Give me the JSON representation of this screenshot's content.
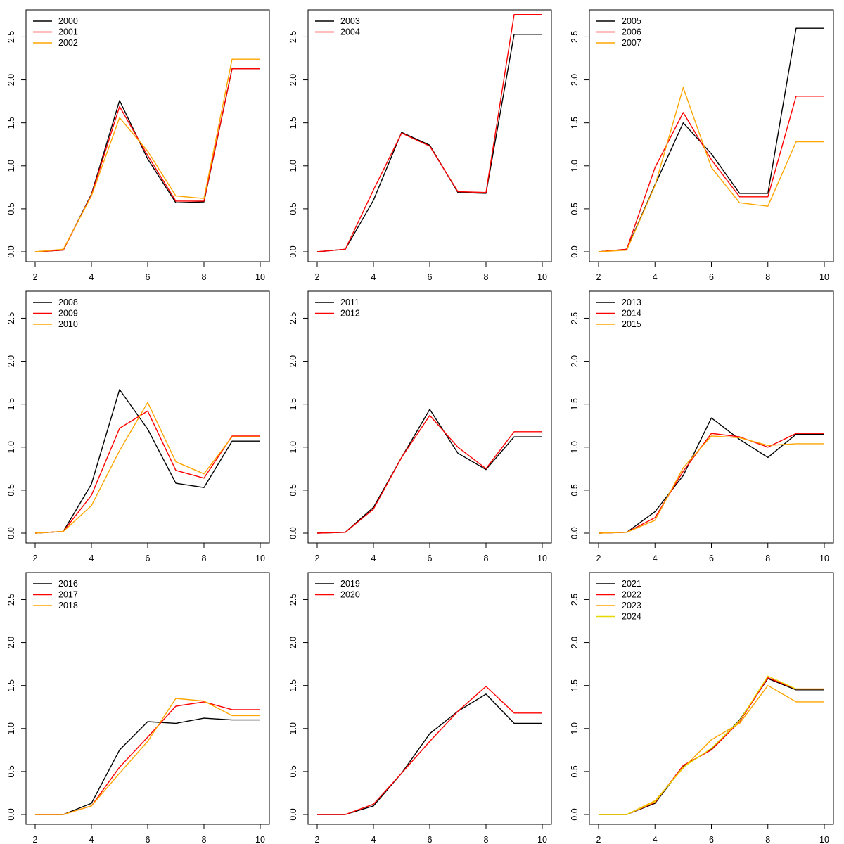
{
  "chart_data": [
    {
      "type": "line",
      "xlim": [
        2,
        10
      ],
      "ylim": [
        0,
        2.7
      ],
      "x_ticks": [
        "2",
        "4",
        "6",
        "8",
        "10"
      ],
      "y_ticks": [
        "0.0",
        "0.5",
        "1.0",
        "1.5",
        "2.0",
        "2.5"
      ],
      "legend_position": "top-left",
      "x": [
        2,
        3,
        4,
        5,
        6,
        7,
        8,
        9,
        10
      ],
      "series": [
        {
          "name": "2000",
          "color": "#000000",
          "values": [
            0.0,
            0.02,
            0.67,
            1.76,
            1.08,
            0.57,
            0.58,
            2.13,
            2.13
          ]
        },
        {
          "name": "2001",
          "color": "#ff0000",
          "values": [
            0.0,
            0.02,
            0.66,
            1.69,
            1.12,
            0.59,
            0.59,
            2.13,
            2.13
          ]
        },
        {
          "name": "2002",
          "color": "#ffa500",
          "values": [
            0.0,
            0.03,
            0.65,
            1.56,
            1.17,
            0.65,
            0.62,
            2.24,
            2.24
          ]
        }
      ]
    },
    {
      "type": "line",
      "xlim": [
        2,
        10
      ],
      "ylim": [
        0,
        2.7
      ],
      "x_ticks": [
        "2",
        "4",
        "6",
        "8",
        "10"
      ],
      "y_ticks": [
        "0.0",
        "0.5",
        "1.0",
        "1.5",
        "2.0",
        "2.5"
      ],
      "legend_position": "top-left",
      "x": [
        2,
        3,
        4,
        5,
        6,
        7,
        8,
        9,
        10
      ],
      "series": [
        {
          "name": "2003",
          "color": "#000000",
          "values": [
            0.0,
            0.03,
            0.6,
            1.39,
            1.24,
            0.69,
            0.68,
            2.53,
            2.53
          ]
        },
        {
          "name": "2004",
          "color": "#ff0000",
          "values": [
            0.0,
            0.03,
            0.72,
            1.38,
            1.23,
            0.7,
            0.69,
            2.76,
            2.76
          ]
        }
      ]
    },
    {
      "type": "line",
      "xlim": [
        2,
        10
      ],
      "ylim": [
        0,
        2.7
      ],
      "x_ticks": [
        "2",
        "4",
        "6",
        "8",
        "10"
      ],
      "y_ticks": [
        "0.0",
        "0.5",
        "1.0",
        "1.5",
        "2.0",
        "2.5"
      ],
      "legend_position": "top-left",
      "x": [
        2,
        3,
        4,
        5,
        6,
        7,
        8,
        9,
        10
      ],
      "series": [
        {
          "name": "2005",
          "color": "#000000",
          "values": [
            0.0,
            0.03,
            0.78,
            1.5,
            1.14,
            0.68,
            0.68,
            2.6,
            2.6
          ]
        },
        {
          "name": "2006",
          "color": "#ff0000",
          "values": [
            0.0,
            0.03,
            0.98,
            1.62,
            1.07,
            0.64,
            0.64,
            1.81,
            1.81
          ]
        },
        {
          "name": "2007",
          "color": "#ffa500",
          "values": [
            0.0,
            0.02,
            0.77,
            1.91,
            0.98,
            0.57,
            0.53,
            1.28,
            1.28
          ]
        }
      ]
    },
    {
      "type": "line",
      "xlim": [
        2,
        10
      ],
      "ylim": [
        0,
        2.7
      ],
      "x_ticks": [
        "2",
        "4",
        "6",
        "8",
        "10"
      ],
      "y_ticks": [
        "0.0",
        "0.5",
        "1.0",
        "1.5",
        "2.0",
        "2.5"
      ],
      "legend_position": "top-left",
      "x": [
        2,
        3,
        4,
        5,
        6,
        7,
        8,
        9,
        10
      ],
      "series": [
        {
          "name": "2008",
          "color": "#000000",
          "values": [
            0.0,
            0.02,
            0.57,
            1.67,
            1.21,
            0.58,
            0.53,
            1.07,
            1.07
          ]
        },
        {
          "name": "2009",
          "color": "#ff0000",
          "values": [
            0.0,
            0.02,
            0.44,
            1.22,
            1.42,
            0.73,
            0.64,
            1.13,
            1.13
          ]
        },
        {
          "name": "2010",
          "color": "#ffa500",
          "values": [
            0.0,
            0.02,
            0.32,
            0.96,
            1.52,
            0.83,
            0.69,
            1.12,
            1.12
          ]
        }
      ]
    },
    {
      "type": "line",
      "xlim": [
        2,
        10
      ],
      "ylim": [
        0,
        2.7
      ],
      "x_ticks": [
        "2",
        "4",
        "6",
        "8",
        "10"
      ],
      "y_ticks": [
        "0.0",
        "0.5",
        "1.0",
        "1.5",
        "2.0",
        "2.5"
      ],
      "legend_position": "top-left",
      "x": [
        2,
        3,
        4,
        5,
        6,
        7,
        8,
        9,
        10
      ],
      "series": [
        {
          "name": "2011",
          "color": "#000000",
          "values": [
            0.0,
            0.01,
            0.3,
            0.88,
            1.44,
            0.93,
            0.74,
            1.12,
            1.12
          ]
        },
        {
          "name": "2012",
          "color": "#ff0000",
          "values": [
            0.0,
            0.01,
            0.28,
            0.88,
            1.37,
            1.0,
            0.75,
            1.18,
            1.18
          ]
        }
      ]
    },
    {
      "type": "line",
      "xlim": [
        2,
        10
      ],
      "ylim": [
        0,
        2.7
      ],
      "x_ticks": [
        "2",
        "4",
        "6",
        "8",
        "10"
      ],
      "y_ticks": [
        "0.0",
        "0.5",
        "1.0",
        "1.5",
        "2.0",
        "2.5"
      ],
      "legend_position": "top-left",
      "x": [
        2,
        3,
        4,
        5,
        6,
        7,
        8,
        9,
        10
      ],
      "series": [
        {
          "name": "2013",
          "color": "#000000",
          "values": [
            0.0,
            0.01,
            0.25,
            0.67,
            1.34,
            1.09,
            0.88,
            1.15,
            1.15
          ]
        },
        {
          "name": "2014",
          "color": "#ff0000",
          "values": [
            0.0,
            0.01,
            0.18,
            0.72,
            1.16,
            1.12,
            1.0,
            1.16,
            1.16
          ]
        },
        {
          "name": "2015",
          "color": "#ffa500",
          "values": [
            0.0,
            0.01,
            0.15,
            0.76,
            1.13,
            1.11,
            1.02,
            1.04,
            1.04
          ]
        }
      ]
    },
    {
      "type": "line",
      "xlim": [
        2,
        10
      ],
      "ylim": [
        0,
        2.7
      ],
      "x_ticks": [
        "2",
        "4",
        "6",
        "8",
        "10"
      ],
      "y_ticks": [
        "0.0",
        "0.5",
        "1.0",
        "1.5",
        "2.0",
        "2.5"
      ],
      "legend_position": "top-left",
      "x": [
        2,
        3,
        4,
        5,
        6,
        7,
        8,
        9,
        10
      ],
      "series": [
        {
          "name": "2016",
          "color": "#000000",
          "values": [
            0.0,
            0.0,
            0.13,
            0.75,
            1.08,
            1.06,
            1.12,
            1.1,
            1.1
          ]
        },
        {
          "name": "2017",
          "color": "#ff0000",
          "values": [
            0.0,
            0.0,
            0.1,
            0.55,
            0.9,
            1.26,
            1.31,
            1.22,
            1.22
          ]
        },
        {
          "name": "2018",
          "color": "#ffa500",
          "values": [
            0.0,
            0.0,
            0.1,
            0.48,
            0.85,
            1.35,
            1.32,
            1.15,
            1.15
          ]
        }
      ]
    },
    {
      "type": "line",
      "xlim": [
        2,
        10
      ],
      "ylim": [
        0,
        2.7
      ],
      "x_ticks": [
        "2",
        "4",
        "6",
        "8",
        "10"
      ],
      "y_ticks": [
        "0.0",
        "0.5",
        "1.0",
        "1.5",
        "2.0",
        "2.5"
      ],
      "legend_position": "top-left",
      "x": [
        2,
        3,
        4,
        5,
        6,
        7,
        8,
        9,
        10
      ],
      "series": [
        {
          "name": "2019",
          "color": "#000000",
          "values": [
            0.0,
            0.0,
            0.1,
            0.48,
            0.94,
            1.2,
            1.4,
            1.06,
            1.06
          ]
        },
        {
          "name": "2020",
          "color": "#ff0000",
          "values": [
            0.0,
            0.0,
            0.12,
            0.48,
            0.85,
            1.2,
            1.49,
            1.18,
            1.18
          ]
        }
      ]
    },
    {
      "type": "line",
      "xlim": [
        2,
        10
      ],
      "ylim": [
        0,
        2.7
      ],
      "x_ticks": [
        "2",
        "4",
        "6",
        "8",
        "10"
      ],
      "y_ticks": [
        "0.0",
        "0.5",
        "1.0",
        "1.5",
        "2.0",
        "2.5"
      ],
      "legend_position": "top-left",
      "x": [
        2,
        3,
        4,
        5,
        6,
        7,
        8,
        9,
        10
      ],
      "series": [
        {
          "name": "2021",
          "color": "#000000",
          "values": [
            0.0,
            0.0,
            0.13,
            0.56,
            0.76,
            1.1,
            1.58,
            1.45,
            1.45
          ]
        },
        {
          "name": "2022",
          "color": "#ff0000",
          "values": [
            0.0,
            0.0,
            0.14,
            0.57,
            0.75,
            1.08,
            1.59,
            1.46,
            1.46
          ]
        },
        {
          "name": "2023",
          "color": "#ffa500",
          "values": [
            0.0,
            0.0,
            0.16,
            0.54,
            0.87,
            1.06,
            1.5,
            1.31,
            1.31
          ]
        },
        {
          "name": "2024",
          "color": "#e6d800",
          "values": [
            0.0,
            0.0,
            0.15,
            0.55,
            0.77,
            1.09,
            1.61,
            1.46,
            1.46
          ]
        }
      ]
    }
  ]
}
